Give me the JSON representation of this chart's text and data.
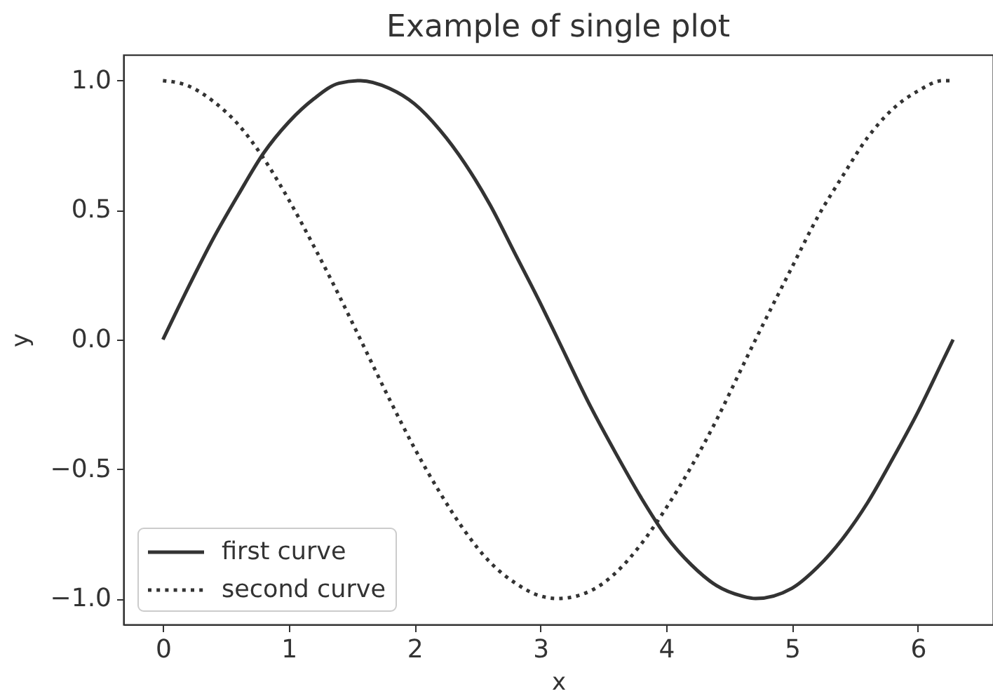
{
  "chart_data": {
    "type": "line",
    "title": "Example of single plot",
    "xlabel": "x",
    "ylabel": "y",
    "x": [
      0,
      0.2,
      0.4,
      0.6,
      0.8,
      1.0,
      1.2,
      1.4,
      1.57,
      1.8,
      2.0,
      2.2,
      2.4,
      2.6,
      2.8,
      3.0,
      3.14,
      3.4,
      3.6,
      3.8,
      4.0,
      4.2,
      4.4,
      4.6,
      4.71,
      5.0,
      5.2,
      5.4,
      5.6,
      5.8,
      6.0,
      6.2,
      6.28
    ],
    "series": [
      {
        "name": "first curve",
        "color": "#333333",
        "line_style": "solid",
        "values": [
          0.0,
          0.2,
          0.39,
          0.56,
          0.72,
          0.84,
          0.93,
          0.99,
          1.0,
          0.97,
          0.91,
          0.81,
          0.68,
          0.52,
          0.33,
          0.14,
          0.0,
          -0.26,
          -0.44,
          -0.61,
          -0.76,
          -0.87,
          -0.95,
          -0.99,
          -1.0,
          -0.96,
          -0.88,
          -0.77,
          -0.63,
          -0.46,
          -0.28,
          -0.08,
          0.0
        ]
      },
      {
        "name": "second curve",
        "color": "#333333",
        "line_style": "dotted",
        "values": [
          1.0,
          0.98,
          0.92,
          0.83,
          0.7,
          0.54,
          0.36,
          0.17,
          0.0,
          -0.23,
          -0.42,
          -0.59,
          -0.74,
          -0.86,
          -0.94,
          -0.99,
          -1.0,
          -0.97,
          -0.9,
          -0.79,
          -0.65,
          -0.49,
          -0.31,
          -0.11,
          0.0,
          0.28,
          0.47,
          0.63,
          0.78,
          0.89,
          0.96,
          1.0,
          1.0
        ]
      }
    ],
    "xlim": [
      -0.314,
      6.597
    ],
    "ylim": [
      -1.1,
      1.1
    ],
    "xticks": [
      0,
      1,
      2,
      3,
      4,
      5,
      6
    ],
    "yticks": [
      {
        "value": -1.0,
        "label": "−1.0"
      },
      -0.5,
      {
        "value": 0.0,
        "label": "0.0"
      },
      0.5,
      {
        "value": 1.0,
        "label": "1.0"
      }
    ],
    "grid": false,
    "legend": "bottom left"
  }
}
